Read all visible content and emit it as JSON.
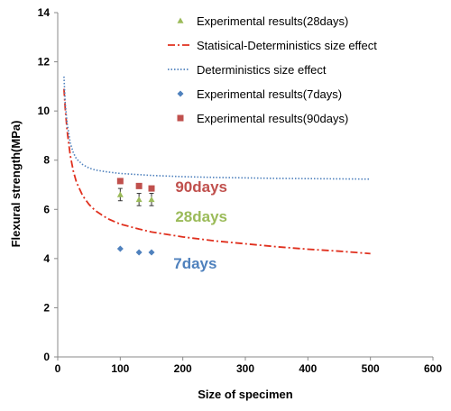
{
  "chart_data": {
    "type": "scatter",
    "xlabel": "Size of specimen",
    "ylabel": "Flexural strength(MPa)",
    "xlim": [
      0,
      600
    ],
    "ylim": [
      0,
      14
    ],
    "xticks": [
      0,
      100,
      200,
      300,
      400,
      500,
      600
    ],
    "yticks": [
      0,
      2,
      4,
      6,
      8,
      10,
      12,
      14
    ],
    "grid": false,
    "legend_position": "top-right",
    "series": [
      {
        "name": "Experimental results(28days)",
        "kind": "points",
        "marker": "triangle",
        "color": "#9bbb59",
        "x": [
          100,
          130,
          150
        ],
        "y": [
          6.6,
          6.4,
          6.4
        ],
        "error": [
          0.25,
          0.25,
          0.25
        ]
      },
      {
        "name": "Statisical-Deterministics size effect",
        "kind": "line",
        "style": "dash-dot",
        "color": "#e0301e",
        "x": [
          10,
          12,
          15,
          20,
          25,
          30,
          40,
          50,
          60,
          70,
          80,
          100,
          130,
          150,
          200,
          250,
          300,
          350,
          400,
          450,
          500
        ],
        "y": [
          10.9,
          10.1,
          9.2,
          8.2,
          7.55,
          7.1,
          6.55,
          6.2,
          5.95,
          5.78,
          5.62,
          5.4,
          5.2,
          5.08,
          4.88,
          4.72,
          4.6,
          4.48,
          4.38,
          4.3,
          4.2
        ]
      },
      {
        "name": "Deterministics size effect",
        "kind": "line",
        "style": "dotted",
        "color": "#4f81bd",
        "x": [
          10,
          12,
          15,
          20,
          25,
          30,
          40,
          50,
          60,
          80,
          100,
          150,
          200,
          250,
          300,
          350,
          400,
          450,
          500
        ],
        "y": [
          11.4,
          10.3,
          9.5,
          8.7,
          8.3,
          8.05,
          7.82,
          7.68,
          7.6,
          7.52,
          7.46,
          7.38,
          7.33,
          7.3,
          7.28,
          7.26,
          7.25,
          7.24,
          7.23
        ]
      },
      {
        "name": "Experimental results(7days)",
        "kind": "points",
        "marker": "diamond",
        "color": "#4f81bd",
        "x": [
          100,
          130,
          150
        ],
        "y": [
          4.4,
          4.25,
          4.25
        ]
      },
      {
        "name": "Experimental results(90days)",
        "kind": "points",
        "marker": "square",
        "color": "#c0504d",
        "x": [
          100,
          130,
          150
        ],
        "y": [
          7.15,
          6.95,
          6.85
        ]
      }
    ],
    "annotations": [
      {
        "text": "90days",
        "x": 188,
        "y": 6.7,
        "color": "#c0504d"
      },
      {
        "text": "28days",
        "x": 188,
        "y": 5.5,
        "color": "#9bbb59"
      },
      {
        "text": "7days",
        "x": 185,
        "y": 3.6,
        "color": "#4f81bd"
      }
    ]
  }
}
